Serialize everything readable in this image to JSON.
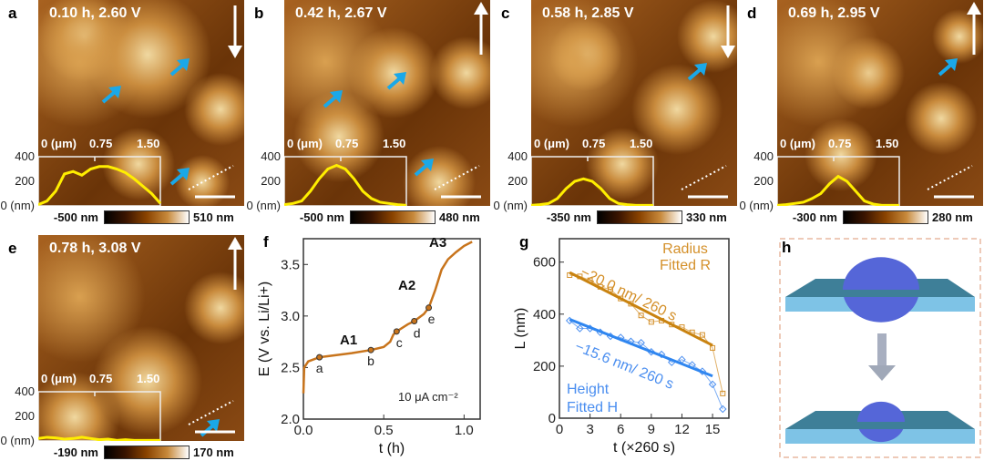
{
  "panels": [
    {
      "label": "a",
      "condition": "0.10 h, 2.60 V",
      "cbar_min": "-500 nm",
      "cbar_max": "510 nm",
      "arrow": "down",
      "profile_nm": [
        10,
        40,
        120,
        260,
        280,
        250,
        300,
        320,
        320,
        300,
        270,
        220,
        160,
        100,
        20
      ]
    },
    {
      "label": "b",
      "condition": "0.42 h, 2.67 V",
      "cbar_min": "-500 nm",
      "cbar_max": "480 nm",
      "arrow": "up",
      "profile_nm": [
        10,
        20,
        40,
        120,
        220,
        300,
        330,
        300,
        220,
        120,
        60,
        30,
        20,
        10,
        5
      ]
    },
    {
      "label": "c",
      "condition": "0.58 h, 2.85 V",
      "cbar_min": "-350 nm",
      "cbar_max": "330 nm",
      "arrow": "down",
      "profile_nm": [
        5,
        10,
        20,
        60,
        140,
        200,
        220,
        200,
        140,
        60,
        20,
        10,
        5,
        5,
        5
      ]
    },
    {
      "label": "d",
      "condition": "0.69 h, 2.95 V",
      "cbar_min": "-300 nm",
      "cbar_max": "280 nm",
      "arrow": "up",
      "profile_nm": [
        5,
        10,
        20,
        30,
        60,
        100,
        180,
        240,
        200,
        120,
        40,
        15,
        5,
        5,
        5
      ]
    },
    {
      "label": "e",
      "condition": "0.78 h, 3.08 V",
      "cbar_min": "-190 nm",
      "cbar_max": "170 nm",
      "arrow": "up",
      "profile_nm": [
        20,
        30,
        25,
        15,
        20,
        30,
        20,
        10,
        15,
        5,
        10,
        5,
        5,
        5,
        5
      ]
    }
  ],
  "profile_axis": {
    "y_ticks": [
      "400",
      "200",
      "0 (nm)"
    ],
    "x_ticks": [
      "0 (μm)",
      "0.75",
      "1.50"
    ]
  },
  "chart_data": [
    {
      "type": "line",
      "panel": "f",
      "xlabel": "t (h)",
      "ylabel": "E (V vs. Li/Li+)",
      "xlim": [
        0,
        1.1
      ],
      "ylim": [
        2.0,
        3.75
      ],
      "x_ticks": [
        "0.0",
        "0.5",
        "1.0"
      ],
      "y_ticks": [
        "2.0",
        "2.5",
        "3.0",
        "3.5"
      ],
      "curve": [
        [
          0,
          2.25
        ],
        [
          0.005,
          2.5
        ],
        [
          0.03,
          2.56
        ],
        [
          0.1,
          2.6
        ],
        [
          0.2,
          2.62
        ],
        [
          0.3,
          2.64
        ],
        [
          0.42,
          2.67
        ],
        [
          0.5,
          2.7
        ],
        [
          0.54,
          2.75
        ],
        [
          0.56,
          2.82
        ],
        [
          0.58,
          2.85
        ],
        [
          0.65,
          2.92
        ],
        [
          0.69,
          2.95
        ],
        [
          0.75,
          3.02
        ],
        [
          0.78,
          3.08
        ],
        [
          0.82,
          3.25
        ],
        [
          0.86,
          3.45
        ],
        [
          0.9,
          3.55
        ],
        [
          0.95,
          3.62
        ],
        [
          1.0,
          3.68
        ],
        [
          1.05,
          3.72
        ]
      ],
      "markers": [
        {
          "t": 0.1,
          "E": 2.6,
          "label": "a"
        },
        {
          "t": 0.42,
          "E": 2.67,
          "label": "b"
        },
        {
          "t": 0.58,
          "E": 2.85,
          "label": "c"
        },
        {
          "t": 0.69,
          "E": 2.95,
          "label": "d"
        },
        {
          "t": 0.78,
          "E": 3.08,
          "label": "e"
        }
      ],
      "annotations": [
        "A1",
        "A2",
        "A3",
        "10 μA cm⁻²"
      ]
    },
    {
      "type": "line",
      "panel": "g",
      "xlabel": "t (×260 s)",
      "ylabel": "L (nm)",
      "xlim": [
        0,
        16.6
      ],
      "ylim": [
        0,
        690
      ],
      "x_ticks": [
        "0",
        "3",
        "6",
        "9",
        "12",
        "15"
      ],
      "y_ticks": [
        "0",
        "200",
        "400",
        "600"
      ],
      "series": [
        {
          "name": "Radius",
          "color": "#d4902a",
          "x": [
            1,
            2,
            3,
            4,
            5,
            6,
            7,
            8,
            9,
            10,
            11,
            12,
            13,
            14,
            15,
            16
          ],
          "values": [
            550,
            545,
            530,
            505,
            495,
            460,
            440,
            395,
            370,
            375,
            360,
            350,
            330,
            320,
            270,
            95
          ]
        },
        {
          "name": "Height",
          "color": "#4a8ef0",
          "x": [
            1,
            2,
            3,
            4,
            5,
            6,
            7,
            8,
            9,
            10,
            11,
            12,
            13,
            14,
            15,
            16
          ],
          "values": [
            375,
            345,
            345,
            330,
            315,
            310,
            295,
            290,
            255,
            245,
            215,
            225,
            205,
            180,
            130,
            35
          ]
        }
      ],
      "fits": [
        {
          "name": "Fitted R",
          "from": [
            1,
            560
          ],
          "to": [
            15,
            280
          ],
          "slope_label": "−20.0 nm/ 260 s",
          "color": "#c98310"
        },
        {
          "name": "Fitted H",
          "from": [
            1,
            380
          ],
          "to": [
            15,
            162
          ],
          "slope_label": "−15.6 nm/ 260 s",
          "color": "#2f86f0"
        }
      ]
    }
  ],
  "panel_h": {
    "label": "h"
  },
  "labels": {
    "f": "f",
    "g": "g"
  }
}
